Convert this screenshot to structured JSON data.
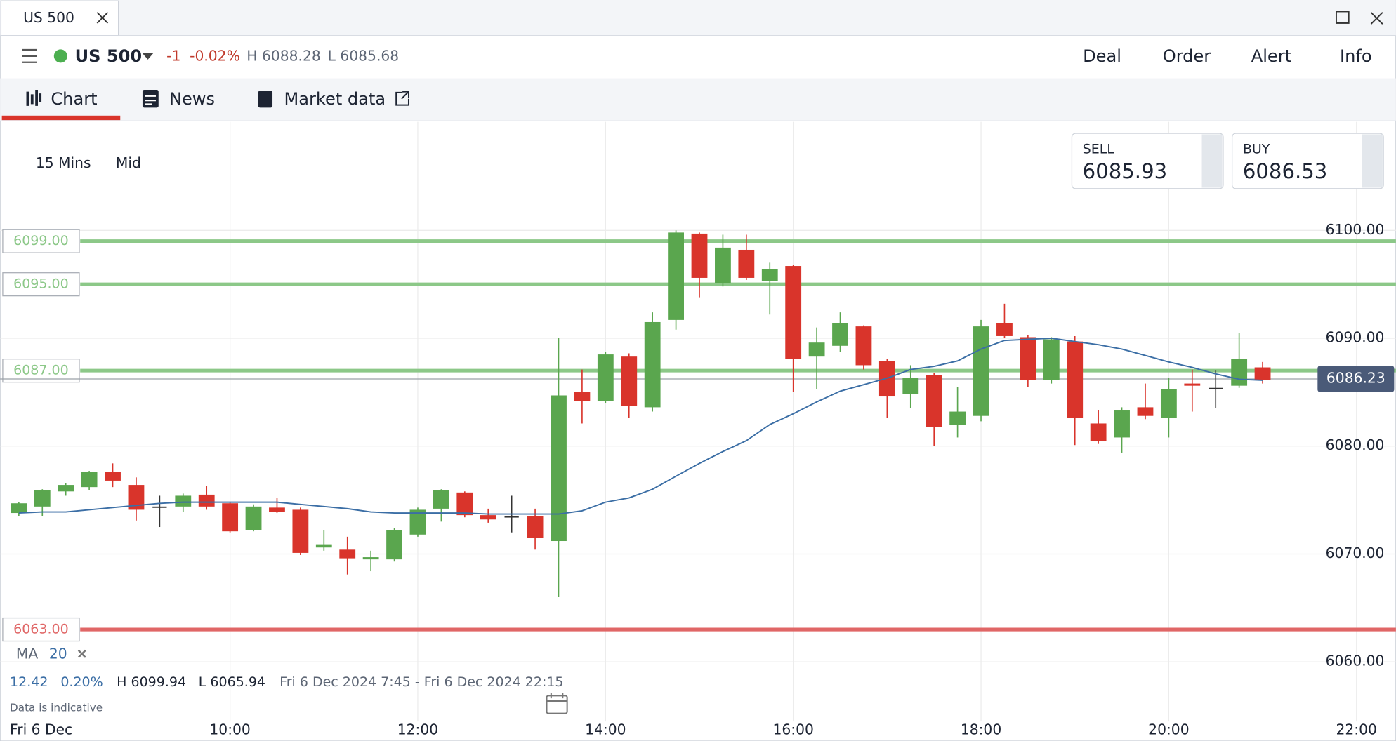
{
  "ui": {
    "tab": "US 500",
    "header": {
      "instrument": "US 500",
      "change": "-1",
      "change_pct": "-0.02%",
      "high": "H 6088.28",
      "low": "L 6085.68",
      "actions": [
        "Deal",
        "Order",
        "Alert",
        "Info"
      ]
    },
    "tabs": [
      "Chart",
      "News",
      "Market data"
    ],
    "interval": "15 Mins",
    "price_type": "Mid",
    "sell": {
      "label": "SELL",
      "price": "6085.93"
    },
    "buy": {
      "label": "BUY",
      "price": "6086.53"
    },
    "indicator": {
      "name": "MA",
      "period": "20"
    },
    "stats": {
      "change": "12.42",
      "change_pct": "0.20%",
      "high": "H 6099.94",
      "low": "L 6065.94",
      "range": "Fri 6 Dec 2024 7:45 - Fri 6 Dec 2024 22:15"
    },
    "note": "Data is indicative",
    "date": "Fri 6 Dec"
  },
  "chart_data": {
    "type": "candlestick",
    "up_color": "#5aa64e",
    "down_color": "#d9342b",
    "doji_color": "#333333",
    "x": [
      7.75,
      8,
      8.25,
      8.5,
      8.75,
      9,
      9.25,
      9.5,
      9.75,
      10,
      10.25,
      10.5,
      10.75,
      11,
      11.25,
      11.5,
      11.75,
      12,
      12.25,
      12.5,
      12.75,
      13,
      13.25,
      13.5,
      13.75,
      14,
      14.25,
      14.5,
      14.75,
      15,
      15.25,
      15.5,
      15.75,
      16,
      16.25,
      16.5,
      16.75,
      17,
      17.25,
      17.5,
      17.75,
      18,
      18.25,
      18.5,
      18.75,
      19,
      19.25,
      19.5,
      19.75,
      20,
      20.25,
      20.5,
      20.75,
      21
    ],
    "open": [
      6073.8,
      6074.4,
      6075.8,
      6076.2,
      6077.6,
      6076.4,
      6074.4,
      6074.4,
      6075.5,
      6074.7,
      6072.2,
      6074.3,
      6074.1,
      6070.6,
      6070.4,
      6069.5,
      6069.5,
      6071.8,
      6074.2,
      6075.7,
      6073.6,
      6073.5,
      6073.5,
      6071.2,
      6085.0,
      6084.2,
      6088.3,
      6083.6,
      6091.7,
      6099.7,
      6095.1,
      6098.2,
      6095.3,
      6096.7,
      6088.3,
      6089.3,
      6091.1,
      6087.9,
      6084.8,
      6086.6,
      6082.0,
      6082.8,
      6091.4,
      6090.1,
      6086.1,
      6089.7,
      6082.1,
      6080.8,
      6083.6,
      6082.6,
      6085.8,
      6085.4,
      6085.6,
      6087.3
    ],
    "high": [
      6074.8,
      6076.0,
      6076.6,
      6077.7,
      6078.4,
      6077.1,
      6075.4,
      6075.6,
      6076.3,
      6074.8,
      6074.6,
      6075.2,
      6074.3,
      6072.2,
      6071.6,
      6070.3,
      6072.4,
      6074.3,
      6076.0,
      6075.8,
      6074.2,
      6075.4,
      6074.2,
      6090.0,
      6087.1,
      6088.7,
      6088.6,
      6092.4,
      6100.0,
      6099.8,
      6099.6,
      6099.6,
      6097.0,
      6096.8,
      6091.0,
      6092.4,
      6091.2,
      6088.1,
      6087.5,
      6086.8,
      6085.5,
      6091.7,
      6093.2,
      6090.3,
      6090.1,
      6090.2,
      6083.3,
      6083.6,
      6085.8,
      6086.3,
      6087.1,
      6087.0,
      6090.5,
      6087.8
    ],
    "low": [
      6073.5,
      6073.5,
      6075.4,
      6075.9,
      6076.2,
      6073.1,
      6072.5,
      6073.9,
      6074.1,
      6072.0,
      6072.1,
      6073.8,
      6069.9,
      6070.3,
      6068.1,
      6068.4,
      6069.3,
      6071.6,
      6073.0,
      6073.4,
      6072.9,
      6072.0,
      6070.4,
      6066.0,
      6082.1,
      6084.0,
      6082.6,
      6083.2,
      6090.8,
      6093.8,
      6094.8,
      6095.4,
      6092.2,
      6085.0,
      6085.3,
      6088.7,
      6087.1,
      6082.6,
      6083.5,
      6080.0,
      6080.8,
      6082.3,
      6090.0,
      6085.5,
      6085.8,
      6080.1,
      6080.2,
      6079.4,
      6082.5,
      6080.8,
      6083.2,
      6083.5,
      6085.4,
      6085.8
    ],
    "close": [
      6074.7,
      6075.9,
      6076.4,
      6077.6,
      6076.8,
      6074.1,
      6074.4,
      6075.4,
      6074.4,
      6072.1,
      6074.4,
      6073.9,
      6070.1,
      6070.9,
      6069.6,
      6069.7,
      6072.2,
      6074.1,
      6075.9,
      6073.6,
      6073.2,
      6073.5,
      6071.5,
      6084.7,
      6084.2,
      6088.5,
      6083.7,
      6091.5,
      6099.8,
      6095.6,
      6098.4,
      6095.6,
      6096.4,
      6088.1,
      6089.6,
      6091.4,
      6087.5,
      6084.6,
      6086.3,
      6081.8,
      6083.2,
      6091.1,
      6090.2,
      6086.1,
      6089.9,
      6082.6,
      6080.5,
      6083.3,
      6082.8,
      6085.3,
      6085.6,
      6085.4,
      6088.1,
      6086.1
    ],
    "ma": {
      "color": "#3b6ea5",
      "values": [
        6073.8,
        6073.9,
        6073.9,
        6074.1,
        6074.3,
        6074.5,
        6074.7,
        6074.8,
        6074.8,
        6074.8,
        6074.8,
        6074.8,
        6074.6,
        6074.4,
        6074.2,
        6073.9,
        6073.8,
        6073.8,
        6073.8,
        6073.8,
        6073.7,
        6073.7,
        6073.7,
        6073.7,
        6074.0,
        6074.8,
        6075.2,
        6076.0,
        6077.2,
        6078.4,
        6079.5,
        6080.5,
        6082.0,
        6083.0,
        6084.1,
        6085.1,
        6085.7,
        6086.3,
        6087.1,
        6087.4,
        6087.9,
        6089.0,
        6089.8,
        6089.9,
        6090.0,
        6089.7,
        6089.4,
        6089.0,
        6088.4,
        6087.8,
        6087.3,
        6086.7,
        6086.2,
        6086.1
      ]
    },
    "levels": [
      {
        "value": 6099,
        "label": "6099.00",
        "color": "#8cc888"
      },
      {
        "value": 6095,
        "label": "6095.00",
        "color": "#8cc888"
      },
      {
        "value": 6087,
        "label": "6087.00",
        "color": "#8cc888"
      },
      {
        "value": 6063,
        "label": "6063.00",
        "color": "#e06666"
      }
    ],
    "last": 6086.23,
    "xlim": [
      7.55,
      22.42
    ],
    "xticks": [
      {
        "value": 10,
        "label": "10:00"
      },
      {
        "value": 12,
        "label": "12:00"
      },
      {
        "value": 14,
        "label": "14:00"
      },
      {
        "value": 16,
        "label": "16:00"
      },
      {
        "value": 18,
        "label": "18:00"
      },
      {
        "value": 20,
        "label": "20:00"
      },
      {
        "value": 22,
        "label": "22:00"
      }
    ],
    "ylim": [
      6052.66,
      6110.06
    ],
    "yticks": [
      {
        "value": 6060,
        "label": "6060.00"
      },
      {
        "value": 6070,
        "label": "6070.00"
      },
      {
        "value": 6080,
        "label": "6080.00"
      },
      {
        "value": 6090,
        "label": "6090.00"
      },
      {
        "value": 6100,
        "label": "6100.00"
      }
    ],
    "grid": true
  }
}
